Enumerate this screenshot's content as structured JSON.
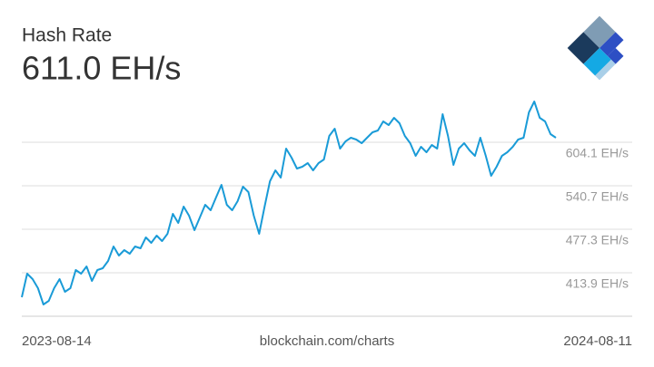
{
  "chart_data": {
    "type": "line",
    "title": "Hash Rate",
    "subtitle": "611.0 EH/s",
    "source": "blockchain.com/charts",
    "x_start": "2023-08-14",
    "x_end": "2024-08-11",
    "color": "#1a9bd7",
    "grid": true,
    "ylim": [
      350.5,
      667.5
    ],
    "yticks": [
      {
        "value": 413.9,
        "label": "413.9 EH/s"
      },
      {
        "value": 477.3,
        "label": "477.3 EH/s"
      },
      {
        "value": 540.7,
        "label": "540.7 EH/s"
      },
      {
        "value": 604.1,
        "label": "604.1 EH/s"
      }
    ],
    "values": [
      378.2,
      412.6,
      404.7,
      391.4,
      367.7,
      373.0,
      391.4,
      404.7,
      386.2,
      391.4,
      417.9,
      412.6,
      423.1,
      402.0,
      417.9,
      420.5,
      431.1,
      452.2,
      439.0,
      446.9,
      441.6,
      452.2,
      449.6,
      465.4,
      457.5,
      468.1,
      460.1,
      470.7,
      499.8,
      486.5,
      510.3,
      497.1,
      476.0,
      494.5,
      513.0,
      505.0,
      523.5,
      542.0,
      513.0,
      505.0,
      518.2,
      539.4,
      531.5,
      497.1,
      470.7,
      510.3,
      547.3,
      563.2,
      552.6,
      594.8,
      581.6,
      565.8,
      568.4,
      573.7,
      563.2,
      573.7,
      579.0,
      613.3,
      623.9,
      594.8,
      605.4,
      610.7,
      608.1,
      602.8,
      610.7,
      618.6,
      621.3,
      634.5,
      629.2,
      639.8,
      631.8,
      613.3,
      602.8,
      584.3,
      597.5,
      589.6,
      600.1,
      594.8,
      645.0,
      613.3,
      571.1,
      594.8,
      602.8,
      592.2,
      584.3,
      610.7,
      584.3,
      555.2,
      568.4,
      584.3,
      589.6,
      597.5,
      608.1,
      610.7,
      647.7,
      663.5,
      639.8,
      634.5,
      616.0,
      610.7
    ]
  }
}
